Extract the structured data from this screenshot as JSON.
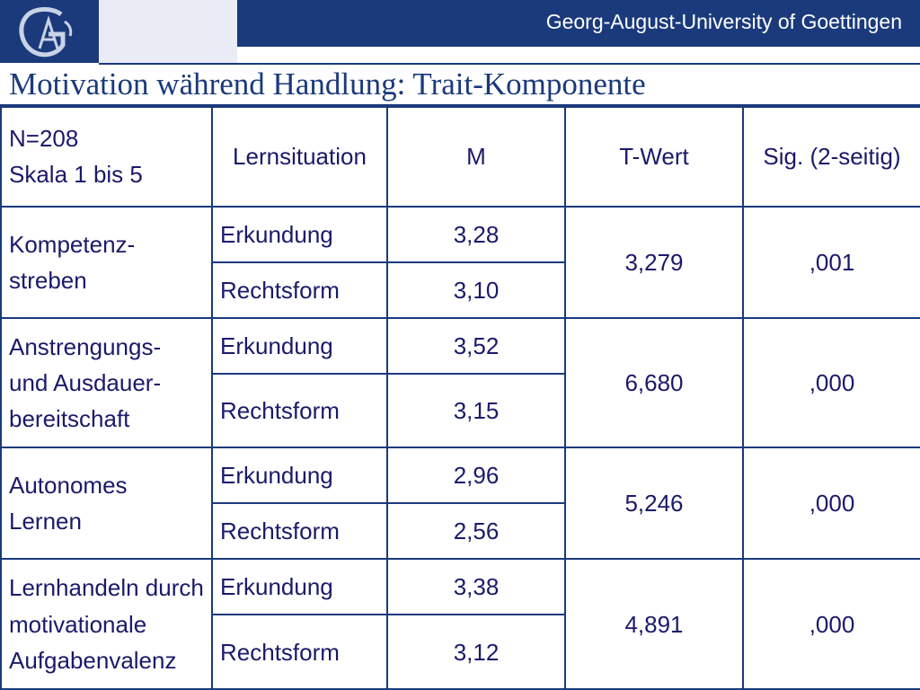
{
  "header": {
    "institution": "Georg-August-University of Goettingen"
  },
  "page": {
    "title": "Motivation während Handlung: Trait-Komponente"
  },
  "table": {
    "header": {
      "info_line1": "N=208",
      "info_line2": "Skala 1 bis 5",
      "col_situation": "Lernsituation",
      "col_m": "M",
      "col_t": "T-Wert",
      "col_sig": "Sig. (2-seitig)"
    },
    "groups": [
      {
        "label": "Kompetenz-streben",
        "t_value": "3,279",
        "sig": ",001",
        "rows": [
          {
            "situation": "Erkundung",
            "m": "3,28"
          },
          {
            "situation": "Rechtsform",
            "m": "3,10"
          }
        ]
      },
      {
        "label": "Anstrengungs- und Ausdauer-bereitschaft",
        "t_value": "6,680",
        "sig": ",000",
        "rows": [
          {
            "situation": "Erkundung",
            "m": "3,52"
          },
          {
            "situation": "Rechtsform",
            "m": "3,15"
          }
        ]
      },
      {
        "label": "Autonomes Lernen",
        "t_value": "5,246",
        "sig": ",000",
        "rows": [
          {
            "situation": "Erkundung",
            "m": "2,96"
          },
          {
            "situation": "Rechtsform",
            "m": "2,56"
          }
        ]
      },
      {
        "label": "Lernhandeln durch motivationale Aufgabenvalenz",
        "t_value": "4,891",
        "sig": ",000",
        "rows": [
          {
            "situation": "Erkundung",
            "m": "3,38"
          },
          {
            "situation": "Rechtsform",
            "m": "3,12"
          }
        ]
      }
    ]
  },
  "colors": {
    "brand": "#1a3a7c",
    "text": "#1a1a6a",
    "band": "#e9ecf4"
  }
}
